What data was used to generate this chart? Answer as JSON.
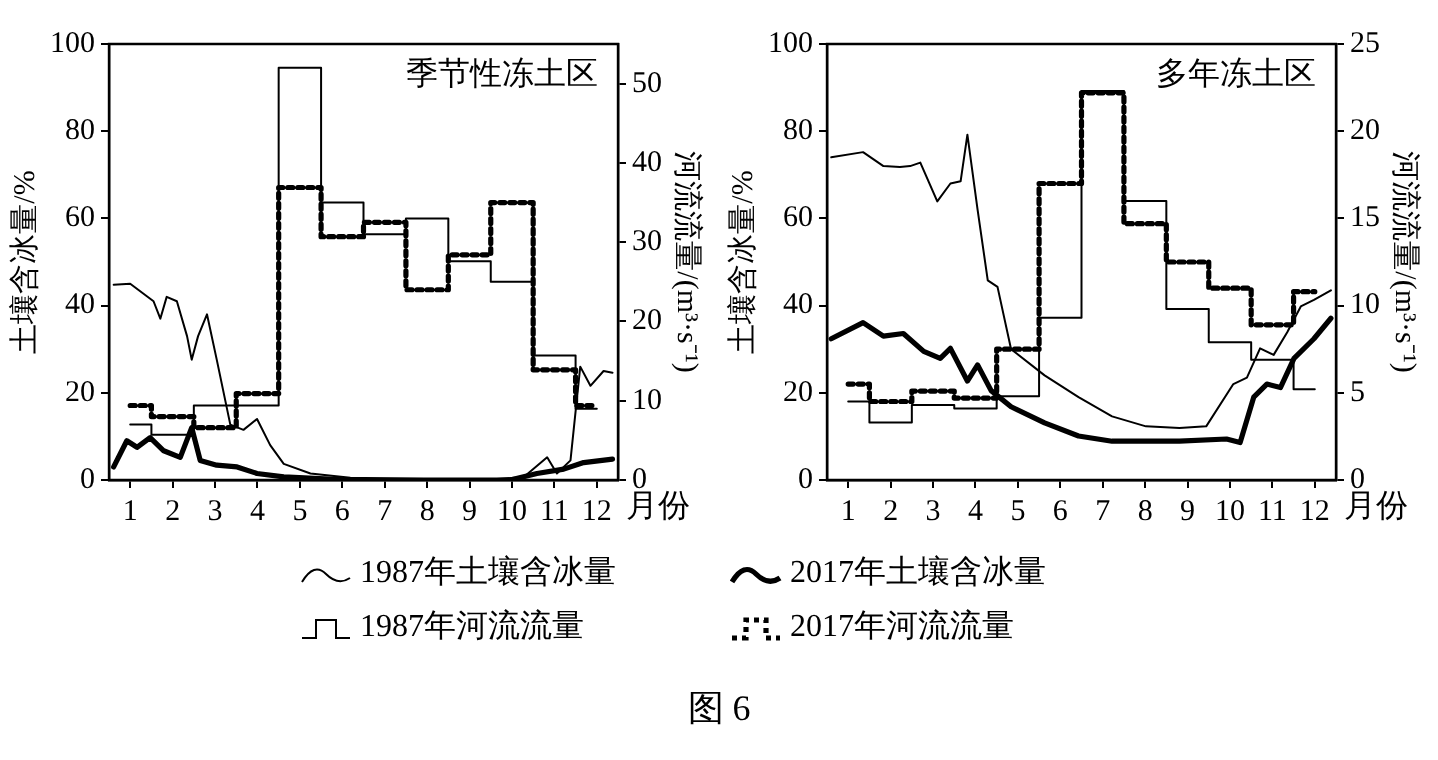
{
  "chart_data": [
    {
      "type": "line",
      "title": "季节性冻土区",
      "xlabel": "月份",
      "ylabel": "土壤含冰量/%",
      "y2label": "河流流量/(m³·s⁻¹)",
      "xlim": [
        0.5,
        12.5
      ],
      "xticks": [
        1,
        2,
        3,
        4,
        5,
        6,
        7,
        8,
        9,
        10,
        11,
        12
      ],
      "ylim": [
        0,
        100
      ],
      "yticks": [
        0,
        20,
        40,
        60,
        80,
        100
      ],
      "y2lim": [
        0,
        55
      ],
      "y2ticks": [
        0,
        10,
        20,
        30,
        40,
        50
      ],
      "legend": "bottom",
      "annotations": [
        "图 6"
      ],
      "series": [
        {
          "name": "1987年土壤含冰量",
          "color": "#000000",
          "line_style": "solid",
          "x": [
            0.61,
            1,
            1.55,
            1.71,
            1.86,
            2.1,
            2.34,
            2.45,
            2.6,
            2.81,
            3.04,
            3.36,
            3.67,
            3.99,
            4.3,
            4.62,
            5.25,
            6.19,
            9.33,
            10.28,
            10.83,
            11.06,
            11.38,
            11.61,
            11.85,
            12.16,
            12.37
          ],
          "values": [
            44.8,
            45,
            41,
            37,
            42,
            41,
            33,
            27.6,
            33,
            38,
            27.6,
            12.7,
            11.5,
            14,
            8,
            3.7,
            1.5,
            0.5,
            0,
            0.7,
            5.2,
            1.5,
            4.5,
            26,
            21.6,
            25,
            24.6
          ]
        },
        {
          "name": "2017年土壤含冰量",
          "color": "#000000",
          "line_style": "solid",
          "x": [
            0.61,
            0.92,
            1.16,
            1.47,
            1.79,
            2.18,
            2.45,
            2.65,
            3.04,
            3.52,
            3.99,
            4.62,
            6.19,
            9.96,
            10.59,
            11.22,
            11.69,
            12.37
          ],
          "values": [
            3,
            9,
            7.5,
            9.7,
            6.7,
            5.2,
            12,
            4.5,
            3.4,
            3,
            1.5,
            0.7,
            0,
            0,
            1.5,
            2.5,
            4,
            4.8
          ]
        },
        {
          "name": "1987年河流流量",
          "type": "step",
          "axis": "y2",
          "color": "#000000",
          "line_style": "solid",
          "x": [
            1,
            2,
            3,
            4,
            5,
            6,
            7,
            8,
            9,
            10,
            11,
            12
          ],
          "values": [
            7,
            5.7,
            9.4,
            9.4,
            52,
            35,
            31,
            33,
            27.6,
            25,
            15.7,
            9
          ]
        },
        {
          "name": "2017年河流流量",
          "type": "step",
          "axis": "y2",
          "color": "#000000",
          "line_style": "dotted",
          "x": [
            1,
            2,
            3,
            4,
            5,
            6,
            7,
            8,
            9,
            10,
            11,
            12
          ],
          "values": [
            9.4,
            8,
            6.6,
            10.9,
            36.9,
            30.7,
            32.5,
            24,
            28.4,
            35,
            13.9,
            9.4
          ]
        }
      ]
    },
    {
      "type": "line",
      "title": "多年冻土区",
      "xlabel": "月份",
      "ylabel": "土壤含冰量/%",
      "y2label": "河流流量/(m³·s⁻¹)",
      "xlim": [
        0.5,
        12.5
      ],
      "xticks": [
        1,
        2,
        3,
        4,
        5,
        6,
        7,
        8,
        9,
        10,
        11,
        12
      ],
      "ylim": [
        0,
        100
      ],
      "yticks": [
        0,
        20,
        40,
        60,
        80,
        100
      ],
      "y2lim": [
        0,
        25
      ],
      "y2ticks": [
        0,
        5,
        10,
        15,
        20,
        25
      ],
      "series": [
        {
          "color": "#000000",
          "line_style": "solid",
          "x": [
            0.6,
            1.35,
            1.83,
            2.22,
            2.46,
            2.7,
            3.1,
            3.41,
            3.65,
            3.81,
            4.05,
            4.29,
            4.52,
            4.84,
            5.63,
            6.43,
            7.22,
            8.02,
            8.81,
            9.44,
            10.08,
            10.4,
            10.71,
            11.03,
            11.35,
            11.67,
            11.98,
            12.38
          ],
          "values": [
            74,
            75.2,
            72,
            71.8,
            72,
            72.8,
            63.9,
            68,
            68.5,
            79.2,
            62,
            45.8,
            44.3,
            30,
            24,
            19,
            14.6,
            12.3,
            11.9,
            12.3,
            22,
            23.5,
            30.2,
            28.7,
            33.9,
            39.8,
            41.3,
            43.5
          ]
        },
        {
          "color": "#000000",
          "line_style": "solid",
          "x": [
            0.6,
            1.35,
            1.83,
            2.3,
            2.78,
            3.17,
            3.41,
            3.81,
            4.05,
            4.37,
            4.84,
            5.63,
            6.43,
            7.22,
            8.81,
            9.92,
            10.24,
            10.56,
            10.87,
            11.19,
            11.51,
            11.98,
            12.38
          ],
          "values": [
            32.4,
            36.1,
            33,
            33.6,
            29.5,
            27.9,
            30.2,
            22.7,
            26.4,
            20.5,
            16.8,
            13.1,
            10.1,
            8.9,
            8.9,
            9.4,
            8.6,
            19,
            22,
            21.2,
            27.9,
            32.4,
            37.1
          ]
        },
        {
          "type": "step",
          "axis": "y2",
          "color": "#000000",
          "line_style": "solid",
          "x": [
            1,
            2,
            3,
            4,
            5,
            6,
            7,
            8,
            9,
            10,
            11,
            12
          ],
          "values": [
            4.5,
            3.3,
            4.3,
            4.1,
            4.8,
            9.3,
            22.3,
            16,
            9.8,
            7.9,
            6.9,
            5.2
          ]
        },
        {
          "type": "step",
          "axis": "y2",
          "color": "#000000",
          "line_style": "dotted",
          "x": [
            1,
            2,
            3,
            4,
            5,
            6,
            7,
            8,
            9,
            10,
            11,
            12
          ],
          "values": [
            5.5,
            4.5,
            5.1,
            4.7,
            7.5,
            17,
            22.2,
            14.7,
            12.5,
            11,
            8.9,
            10.8
          ]
        }
      ]
    }
  ]
}
